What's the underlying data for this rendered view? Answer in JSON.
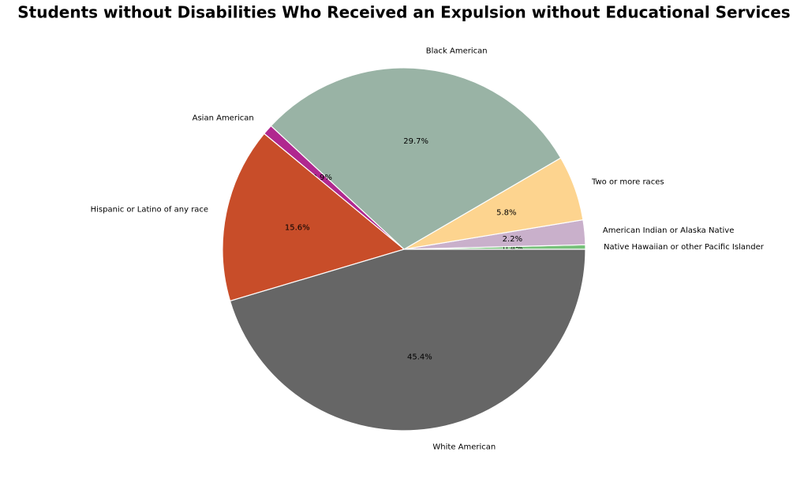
{
  "chart_data": {
    "type": "pie",
    "title": "Students without Disabilities Who Received an Expulsion without Educational Services",
    "categories": [
      "Native Hawaiian or other Pacific Islander",
      "American Indian or Alaska Native",
      "Two or more races",
      "Black American",
      "Asian American",
      "Hispanic or Latino of any race",
      "White American"
    ],
    "values": [
      0.4,
      2.2,
      5.8,
      29.7,
      0.9,
      15.6,
      45.4
    ],
    "value_labels": [
      "0.4%",
      "2.2%",
      "5.8%",
      "29.7%",
      "0.9%",
      "15.6%",
      "45.4%"
    ],
    "colors": [
      "#77c17a",
      "#c9b0cb",
      "#fdd48f",
      "#99b3a5",
      "#b0288f",
      "#c84d29",
      "#666666"
    ]
  }
}
